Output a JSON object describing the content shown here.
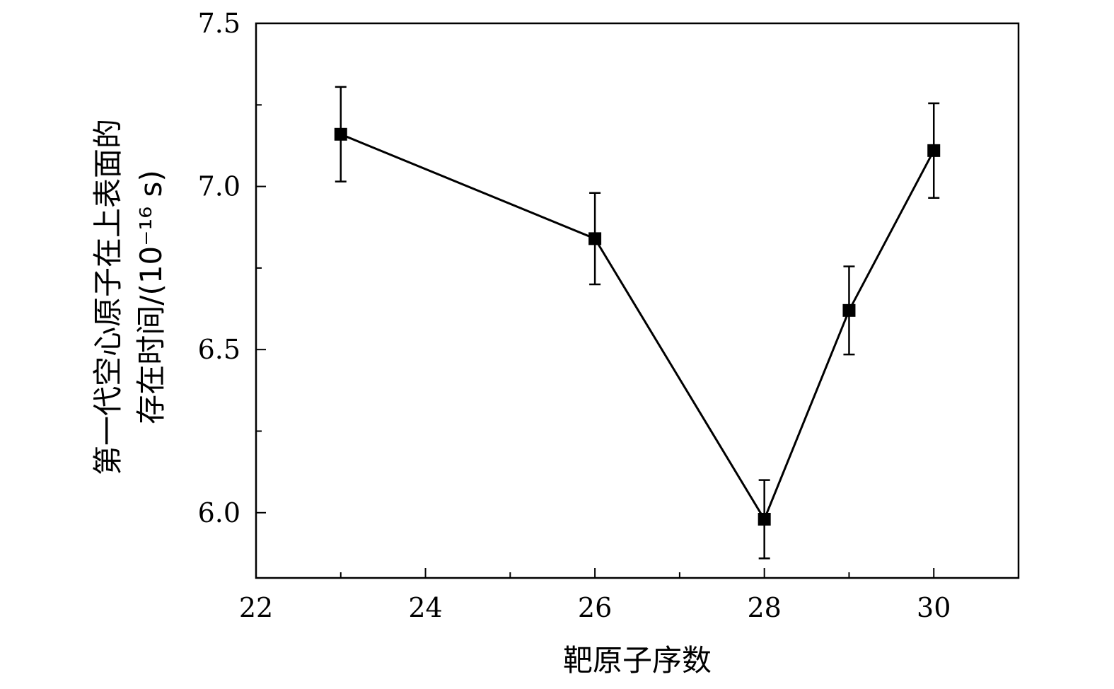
{
  "chart_data": {
    "type": "line",
    "title": "",
    "xlabel": "靶原子序数",
    "ylabel_line1": "第一代空心原子在上表面的",
    "ylabel_line2": "存在时间/(10⁻¹⁶ s)",
    "xlim": [
      22,
      31
    ],
    "ylim": [
      5.8,
      7.5
    ],
    "x_ticks": [
      22,
      24,
      26,
      28,
      30
    ],
    "x_tick_labels": [
      "22",
      "24",
      "26",
      "28",
      "30"
    ],
    "x_minor_ticks": [
      23,
      25,
      27,
      29
    ],
    "y_ticks": [
      6.0,
      6.5,
      7.0,
      7.5
    ],
    "y_tick_labels": [
      "6.0",
      "6.5",
      "7.0",
      "7.5"
    ],
    "y_minor_ticks": [
      5.75,
      6.25,
      6.75,
      7.25
    ],
    "grid": false,
    "legend": "none",
    "series": [
      {
        "marker": "square",
        "color": "#000000",
        "points": [
          {
            "x": 23,
            "y": 7.16,
            "err": 0.145
          },
          {
            "x": 26,
            "y": 6.84,
            "err": 0.14
          },
          {
            "x": 28,
            "y": 5.98,
            "err": 0.12
          },
          {
            "x": 29,
            "y": 6.62,
            "err": 0.135
          },
          {
            "x": 30,
            "y": 7.11,
            "err": 0.145
          }
        ]
      }
    ]
  }
}
